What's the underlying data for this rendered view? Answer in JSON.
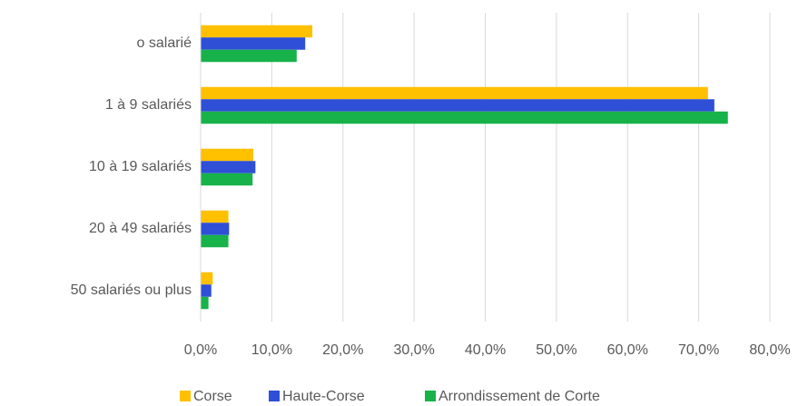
{
  "chart_data": {
    "type": "hbar",
    "categories": [
      "o salarié",
      "1 à 9 salariés",
      "10 à 19 salariés",
      "20 à 49 salariés",
      "50 salariés ou plus"
    ],
    "series": [
      {
        "name": "Corse",
        "color": "#ffc000",
        "values": [
          15.7,
          71.3,
          7.4,
          3.9,
          1.7
        ]
      },
      {
        "name": "Haute-Corse",
        "color": "#2e4fd6",
        "values": [
          14.7,
          72.2,
          7.7,
          4.0,
          1.5
        ]
      },
      {
        "name": "Arrondissement de Corte",
        "color": "#17b24a",
        "values": [
          13.5,
          74.1,
          7.3,
          3.9,
          1.1
        ]
      }
    ],
    "xlim": [
      0,
      80
    ],
    "xticks": [
      {
        "value": 0,
        "label": "0,0%"
      },
      {
        "value": 10,
        "label": "10,0%"
      },
      {
        "value": 20,
        "label": "20,0%"
      },
      {
        "value": 30,
        "label": "30,0%"
      },
      {
        "value": 40,
        "label": "40,0%"
      },
      {
        "value": 50,
        "label": "50,0%"
      },
      {
        "value": 60,
        "label": "60,0%"
      },
      {
        "value": 70,
        "label": "70,0%"
      },
      {
        "value": 80,
        "label": "80,0%"
      }
    ],
    "grid": true,
    "legend": "bottom"
  }
}
